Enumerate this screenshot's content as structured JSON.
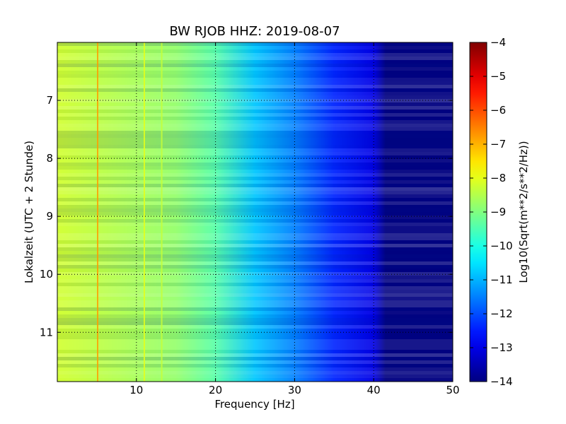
{
  "chart_data": {
    "type": "heatmap",
    "title": "BW RJOB HHZ: 2019-08-07",
    "xlabel": "Frequency [Hz]",
    "ylabel": "Lokalzeit (UTC + 2 Stunde)",
    "colorbar_label": "Log10(Sqrt(m**2/s**2/Hz))",
    "xlim": [
      0,
      50
    ],
    "ylim": [
      6.0,
      11.85
    ],
    "y_inverted": true,
    "x_ticks": [
      10,
      20,
      30,
      40,
      50
    ],
    "y_ticks": [
      7,
      8,
      9,
      10,
      11
    ],
    "colorbar_range": [
      -14,
      -4
    ],
    "colorbar_ticks": [
      -4,
      -5,
      -6,
      -7,
      -8,
      -9,
      -10,
      -11,
      -12,
      -13,
      -14
    ],
    "colormap": "jet",
    "grid": true,
    "level_profile": {
      "frequency": [
        0,
        5,
        10,
        15,
        20,
        25,
        30,
        35,
        40,
        41.5,
        50
      ],
      "level": [
        -8.2,
        -8.4,
        -8.6,
        -8.8,
        -9.4,
        -10.8,
        -11.5,
        -12.4,
        -13.0,
        -14.0,
        -14.0
      ]
    },
    "narrowband_lines": [
      {
        "frequency": 5.1,
        "level": -6.8
      },
      {
        "frequency": 11.0,
        "level": -8.0
      },
      {
        "frequency": 13.2,
        "level": -8.3
      }
    ]
  }
}
